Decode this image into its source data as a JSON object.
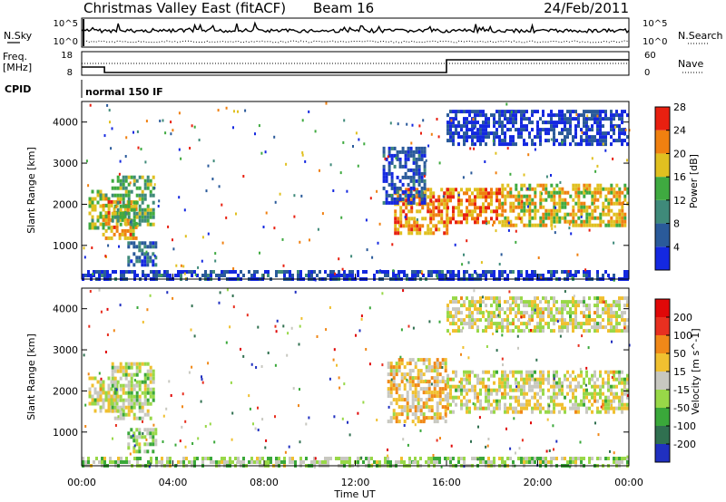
{
  "header": {
    "title": "Christmas Valley East (fitACF)",
    "beam": "Beam 16",
    "date": "24/Feb/2011"
  },
  "panels": {
    "nsky_label": "N.Sky",
    "nsearch_label": "N.Search",
    "freq_label": "Freq.",
    "freq_unit": "[MHz]",
    "nave_label": "Nave",
    "cpid_label": "CPID",
    "cpid_text": "normal 150 IF"
  },
  "chart_data": [
    {
      "type": "line",
      "panel": "noise",
      "yscale": "log",
      "left_ticks": [
        "10^5",
        "10^0"
      ],
      "right_ticks": [
        "10^5",
        "10^0"
      ],
      "xlim": [
        "00:00",
        "24:00"
      ],
      "series_styles": [
        "solid (N.Sky)",
        "dotted (N.Search)"
      ]
    },
    {
      "type": "line",
      "panel": "frequency",
      "left_ticks": [
        "18",
        "8"
      ],
      "right_ticks": [
        "60",
        "0"
      ],
      "freq_steps": [
        {
          "from": "00:00",
          "to": "01:00",
          "level": 11
        },
        {
          "from": "01:00",
          "to": "16:00",
          "level": 8
        },
        {
          "from": "16:00",
          "to": "24:00",
          "level": 15
        }
      ]
    },
    {
      "type": "heatmap",
      "panel": "power",
      "ylabel": "Slant Range [km]",
      "yticks": [
        1000,
        2000,
        3000,
        4000
      ],
      "ylim": [
        180,
        4500
      ],
      "xlim": [
        0,
        24
      ],
      "colorbar_label": "Power [dB]",
      "colorbar_ticks": [
        4,
        8,
        12,
        16,
        20,
        24,
        28
      ],
      "colors": [
        "#1428e0",
        "#2a5a9a",
        "#3f8a7a",
        "#3faa40",
        "#e0c020",
        "#f08010",
        "#e82010"
      ],
      "echo_regions": [
        {
          "x": [
            0.3,
            1.2
          ],
          "y": [
            1450,
            2350
          ],
          "v": 18
        },
        {
          "x": [
            0.9,
            2.4
          ],
          "y": [
            1200,
            2100
          ],
          "v": 22
        },
        {
          "x": [
            1.3,
            3.1
          ],
          "y": [
            1500,
            2700
          ],
          "v": 15
        },
        {
          "x": [
            2.0,
            3.2
          ],
          "y": [
            500,
            1100
          ],
          "v": 9
        },
        {
          "x": [
            13.7,
            16.0
          ],
          "y": [
            1300,
            2400
          ],
          "v": 23
        },
        {
          "x": [
            13.2,
            15.0
          ],
          "y": [
            2000,
            3400
          ],
          "v": 6
        },
        {
          "x": [
            16.0,
            18.4
          ],
          "y": [
            1600,
            2400
          ],
          "v": 24
        },
        {
          "x": [
            18.4,
            24.0
          ],
          "y": [
            1500,
            2500
          ],
          "v": 20
        },
        {
          "x": [
            16.0,
            24.0
          ],
          "y": [
            3500,
            4300
          ],
          "v": 5
        },
        {
          "x": [
            0.0,
            24.0
          ],
          "y": [
            180,
            400
          ],
          "v": 6
        }
      ]
    },
    {
      "type": "heatmap",
      "panel": "velocity",
      "ylabel": "Slant Range [km]",
      "yticks": [
        1000,
        2000,
        3000,
        4000
      ],
      "ylim": [
        180,
        4500
      ],
      "xlim": [
        0,
        24
      ],
      "xticks": [
        "00:00",
        "04:00",
        "08:00",
        "12:00",
        "16:00",
        "20:00",
        "00:00"
      ],
      "xlabel": "Time UT",
      "colorbar_label": "Velocity [m s^-1]",
      "colorbar_ticks": [
        "200",
        "100",
        "50",
        "15",
        "-15",
        "-50",
        "-100",
        "-200"
      ],
      "colors": [
        "#2030c0",
        "#307050",
        "#3aa83a",
        "#98d848",
        "#c8c8c0",
        "#f0c030",
        "#f08818",
        "#e83020",
        "#e00808"
      ],
      "echo_regions": [
        {
          "x": [
            0.3,
            1.5
          ],
          "y": [
            1500,
            2350
          ],
          "v": 0
        },
        {
          "x": [
            1.3,
            3.2
          ],
          "y": [
            1300,
            2700
          ],
          "v": -20
        },
        {
          "x": [
            2.0,
            3.2
          ],
          "y": [
            500,
            1100
          ],
          "v": -40
        },
        {
          "x": [
            13.4,
            16.0
          ],
          "y": [
            1300,
            2800
          ],
          "v": 40
        },
        {
          "x": [
            16.0,
            24.0
          ],
          "y": [
            1500,
            2500
          ],
          "v": 0
        },
        {
          "x": [
            16.0,
            24.0
          ],
          "y": [
            3500,
            4300
          ],
          "v": 0
        },
        {
          "x": [
            0.0,
            24.0
          ],
          "y": [
            180,
            400
          ],
          "v": -40
        }
      ]
    }
  ]
}
